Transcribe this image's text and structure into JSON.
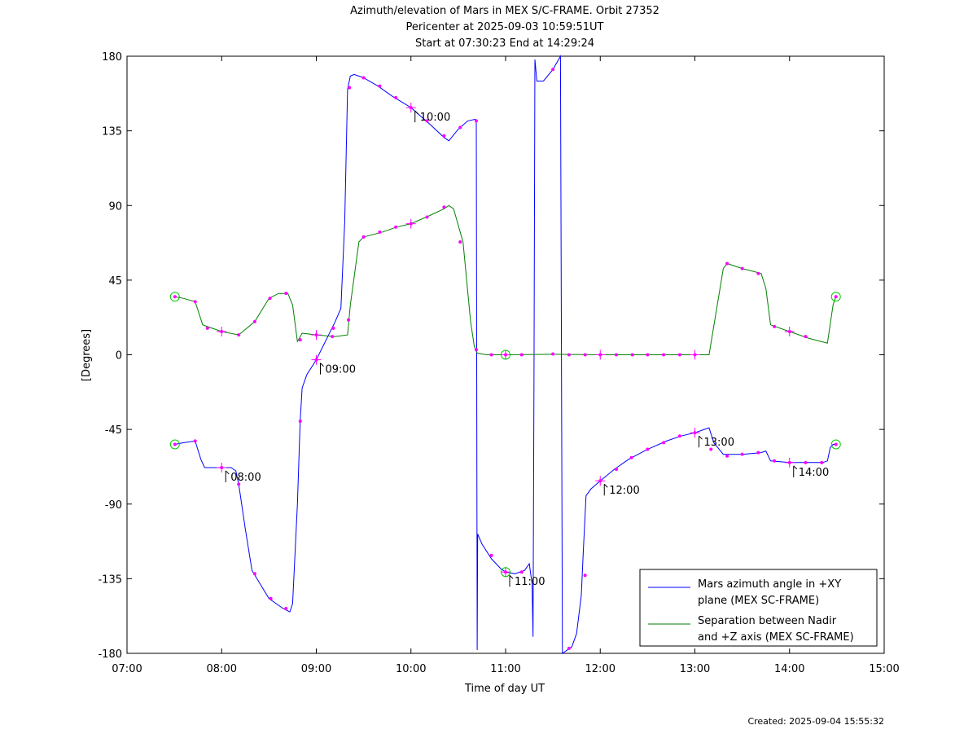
{
  "chart_data": {
    "type": "line",
    "title_lines": [
      "Azimuth/elevation of Mars in MEX S/C-FRAME.  Orbit 27352",
      "Pericenter at 2025-09-03 10:59:51UT",
      "Start at 07:30:23 End at 14:29:24"
    ],
    "xlabel": "Time of day UT",
    "ylabel": "[Degrees]",
    "xlim": [
      7,
      15
    ],
    "ylim": [
      -180,
      180
    ],
    "x_ticks": [
      7,
      8,
      9,
      10,
      11,
      12,
      13,
      14,
      15
    ],
    "x_tick_labels": [
      "07:00",
      "08:00",
      "09:00",
      "10:00",
      "11:00",
      "12:00",
      "13:00",
      "14:00",
      "15:00"
    ],
    "y_ticks": [
      180,
      135,
      90,
      45,
      0,
      -45,
      -90,
      -135,
      -180
    ],
    "y_tick_labels": [
      "180",
      "135",
      "90",
      "45",
      "0",
      "-45",
      "-90",
      "-135",
      "-180"
    ],
    "legend_position": "bottom-right",
    "series": [
      {
        "name": "Mars azimuth angle in +XY plane (MEX SC-FRAME)",
        "legend_lines": [
          "Mars azimuth angle in +XY",
          "plane (MEX SC-FRAME)"
        ],
        "color": "#0000ff",
        "points": [
          [
            7.506,
            -54
          ],
          [
            7.6,
            -53
          ],
          [
            7.72,
            -52
          ],
          [
            7.78,
            -63
          ],
          [
            7.82,
            -68
          ],
          [
            8.0,
            -68
          ],
          [
            8.1,
            -68
          ],
          [
            8.15,
            -70
          ],
          [
            8.18,
            -78
          ],
          [
            8.25,
            -105
          ],
          [
            8.32,
            -130
          ],
          [
            8.5,
            -147
          ],
          [
            8.65,
            -153
          ],
          [
            8.72,
            -155
          ],
          [
            8.75,
            -150
          ],
          [
            8.8,
            -90
          ],
          [
            8.83,
            -40
          ],
          [
            8.85,
            -20
          ],
          [
            8.9,
            -12
          ],
          [
            9.0,
            -3
          ],
          [
            9.2,
            20
          ],
          [
            9.26,
            28
          ],
          [
            9.3,
            80
          ],
          [
            9.33,
            160
          ],
          [
            9.36,
            168
          ],
          [
            9.4,
            169
          ],
          [
            9.5,
            167
          ],
          [
            9.65,
            162
          ],
          [
            9.8,
            156
          ],
          [
            10.0,
            149
          ],
          [
            10.2,
            139
          ],
          [
            10.35,
            131
          ],
          [
            10.4,
            129
          ],
          [
            10.5,
            136
          ],
          [
            10.6,
            141
          ],
          [
            10.68,
            142
          ],
          [
            10.69,
            141
          ],
          [
            10.695,
            0
          ],
          [
            10.7,
            -178
          ],
          [
            10.705,
            -108
          ],
          [
            10.75,
            -114
          ],
          [
            10.85,
            -123
          ],
          [
            10.95,
            -129
          ],
          [
            11.0,
            -131
          ],
          [
            11.1,
            -132
          ],
          [
            11.2,
            -130
          ],
          [
            11.25,
            -126
          ],
          [
            11.28,
            -138
          ],
          [
            11.29,
            -170
          ],
          [
            11.3,
            -10
          ],
          [
            11.31,
            178
          ],
          [
            11.33,
            165
          ],
          [
            11.4,
            165
          ],
          [
            11.5,
            172
          ],
          [
            11.58,
            180
          ],
          [
            11.59,
            0
          ],
          [
            11.6,
            -180
          ],
          [
            11.7,
            -176
          ],
          [
            11.75,
            -168
          ],
          [
            11.8,
            -145
          ],
          [
            11.82,
            -120
          ],
          [
            11.85,
            -85
          ],
          [
            11.9,
            -81
          ],
          [
            12.0,
            -76
          ],
          [
            12.15,
            -69
          ],
          [
            12.3,
            -63
          ],
          [
            12.5,
            -57
          ],
          [
            12.7,
            -52
          ],
          [
            12.85,
            -49
          ],
          [
            13.0,
            -47
          ],
          [
            13.1,
            -45
          ],
          [
            13.15,
            -44
          ],
          [
            13.2,
            -53
          ],
          [
            13.3,
            -60
          ],
          [
            13.5,
            -60
          ],
          [
            13.7,
            -59
          ],
          [
            13.75,
            -58
          ],
          [
            13.8,
            -64
          ],
          [
            14.0,
            -65
          ],
          [
            14.2,
            -65
          ],
          [
            14.35,
            -65
          ],
          [
            14.4,
            -64
          ],
          [
            14.43,
            -56
          ],
          [
            14.46,
            -54
          ],
          [
            14.49,
            -54
          ]
        ],
        "markers": [
          [
            7.506,
            -54
          ],
          [
            7.72,
            -52
          ],
          [
            8.0,
            -68
          ],
          [
            8.18,
            -78
          ],
          [
            8.35,
            -132
          ],
          [
            8.52,
            -147
          ],
          [
            8.68,
            -153
          ],
          [
            8.83,
            -40
          ],
          [
            9.0,
            -3
          ],
          [
            9.18,
            16
          ],
          [
            9.35,
            161
          ],
          [
            9.5,
            167
          ],
          [
            9.67,
            162
          ],
          [
            9.84,
            155
          ],
          [
            10.0,
            149
          ],
          [
            10.17,
            141
          ],
          [
            10.35,
            132
          ],
          [
            10.52,
            137
          ],
          [
            10.69,
            141
          ],
          [
            10.85,
            -121
          ],
          [
            11.0,
            -131
          ],
          [
            11.17,
            -131
          ],
          [
            11.5,
            172
          ],
          [
            11.67,
            -177
          ],
          [
            11.84,
            -133
          ],
          [
            12.0,
            -76
          ],
          [
            12.17,
            -69
          ],
          [
            12.33,
            -62
          ],
          [
            12.5,
            -57
          ],
          [
            12.67,
            -53
          ],
          [
            12.84,
            -49
          ],
          [
            13.0,
            -47
          ],
          [
            13.17,
            -57
          ],
          [
            13.34,
            -61
          ],
          [
            13.5,
            -60
          ],
          [
            13.67,
            -59
          ],
          [
            13.84,
            -64
          ],
          [
            14.0,
            -65
          ],
          [
            14.17,
            -65
          ],
          [
            14.34,
            -65
          ],
          [
            14.49,
            -54
          ]
        ]
      },
      {
        "name": "Separation between Nadir and +Z axis (MEX SC-FRAME)",
        "legend_lines": [
          "Separation between Nadir",
          "and +Z axis (MEX SC-FRAME)"
        ],
        "color": "#008000",
        "points": [
          [
            7.506,
            35
          ],
          [
            7.6,
            34
          ],
          [
            7.72,
            32
          ],
          [
            7.8,
            18
          ],
          [
            8.0,
            14
          ],
          [
            8.18,
            12
          ],
          [
            8.35,
            20
          ],
          [
            8.5,
            34
          ],
          [
            8.6,
            37
          ],
          [
            8.7,
            37
          ],
          [
            8.75,
            30
          ],
          [
            8.8,
            8
          ],
          [
            8.85,
            13
          ],
          [
            9.0,
            12
          ],
          [
            9.2,
            11
          ],
          [
            9.33,
            12
          ],
          [
            9.36,
            30
          ],
          [
            9.45,
            68
          ],
          [
            9.5,
            71
          ],
          [
            9.7,
            74
          ],
          [
            9.85,
            77
          ],
          [
            10.0,
            79
          ],
          [
            10.2,
            84
          ],
          [
            10.35,
            88
          ],
          [
            10.4,
            90
          ],
          [
            10.45,
            88
          ],
          [
            10.55,
            68
          ],
          [
            10.63,
            20
          ],
          [
            10.67,
            5
          ],
          [
            10.7,
            1
          ],
          [
            10.8,
            0
          ],
          [
            11.0,
            0
          ],
          [
            11.5,
            0.3
          ],
          [
            12.0,
            0
          ],
          [
            13.0,
            0
          ],
          [
            13.15,
            0
          ],
          [
            13.3,
            52
          ],
          [
            13.34,
            55
          ],
          [
            13.5,
            52
          ],
          [
            13.7,
            49
          ],
          [
            13.75,
            40
          ],
          [
            13.8,
            18
          ],
          [
            14.0,
            14
          ],
          [
            14.2,
            10
          ],
          [
            14.4,
            7
          ],
          [
            14.46,
            30
          ],
          [
            14.49,
            35
          ]
        ],
        "markers": [
          [
            7.506,
            35
          ],
          [
            7.72,
            32
          ],
          [
            7.85,
            16
          ],
          [
            8.0,
            14
          ],
          [
            8.18,
            12
          ],
          [
            8.35,
            20
          ],
          [
            8.51,
            34
          ],
          [
            8.68,
            37
          ],
          [
            8.83,
            9
          ],
          [
            9.0,
            12
          ],
          [
            9.17,
            11
          ],
          [
            9.34,
            21
          ],
          [
            9.5,
            71
          ],
          [
            9.67,
            74
          ],
          [
            9.84,
            77
          ],
          [
            10.0,
            79
          ],
          [
            10.17,
            83
          ],
          [
            10.35,
            89
          ],
          [
            10.52,
            68
          ],
          [
            10.69,
            3
          ],
          [
            10.85,
            0
          ],
          [
            11.0,
            0
          ],
          [
            11.17,
            0
          ],
          [
            11.5,
            0.5
          ],
          [
            11.67,
            0
          ],
          [
            11.84,
            0
          ],
          [
            12.0,
            0
          ],
          [
            12.17,
            0
          ],
          [
            12.34,
            0
          ],
          [
            12.5,
            0
          ],
          [
            12.67,
            0
          ],
          [
            12.84,
            0
          ],
          [
            13.0,
            0
          ],
          [
            13.34,
            55
          ],
          [
            13.5,
            52
          ],
          [
            13.67,
            49
          ],
          [
            13.84,
            17
          ],
          [
            14.0,
            14
          ],
          [
            14.17,
            11
          ],
          [
            14.49,
            35
          ]
        ]
      }
    ],
    "hour_marks": [
      {
        "time": 8,
        "label": "08:00",
        "azimuth": -68,
        "separation": 14
      },
      {
        "time": 9,
        "label": "09:00",
        "azimuth": -3,
        "separation": 12
      },
      {
        "time": 10,
        "label": "10:00",
        "azimuth": 149,
        "separation": 79
      },
      {
        "time": 11,
        "label": "11:00",
        "azimuth": -131,
        "separation": 0
      },
      {
        "time": 12,
        "label": "12:00",
        "azimuth": -76,
        "separation": 0
      },
      {
        "time": 13,
        "label": "13:00",
        "azimuth": -47,
        "separation": 0
      },
      {
        "time": 14,
        "label": "14:00",
        "azimuth": -65,
        "separation": 14
      }
    ],
    "circle_marks": [
      [
        7.506,
        -54
      ],
      [
        7.506,
        35
      ],
      [
        11.0,
        -131
      ],
      [
        11.0,
        0
      ],
      [
        14.49,
        -54
      ],
      [
        14.49,
        35
      ]
    ]
  },
  "footer": {
    "created": "Created: 2025-09-04 15:55:32"
  }
}
